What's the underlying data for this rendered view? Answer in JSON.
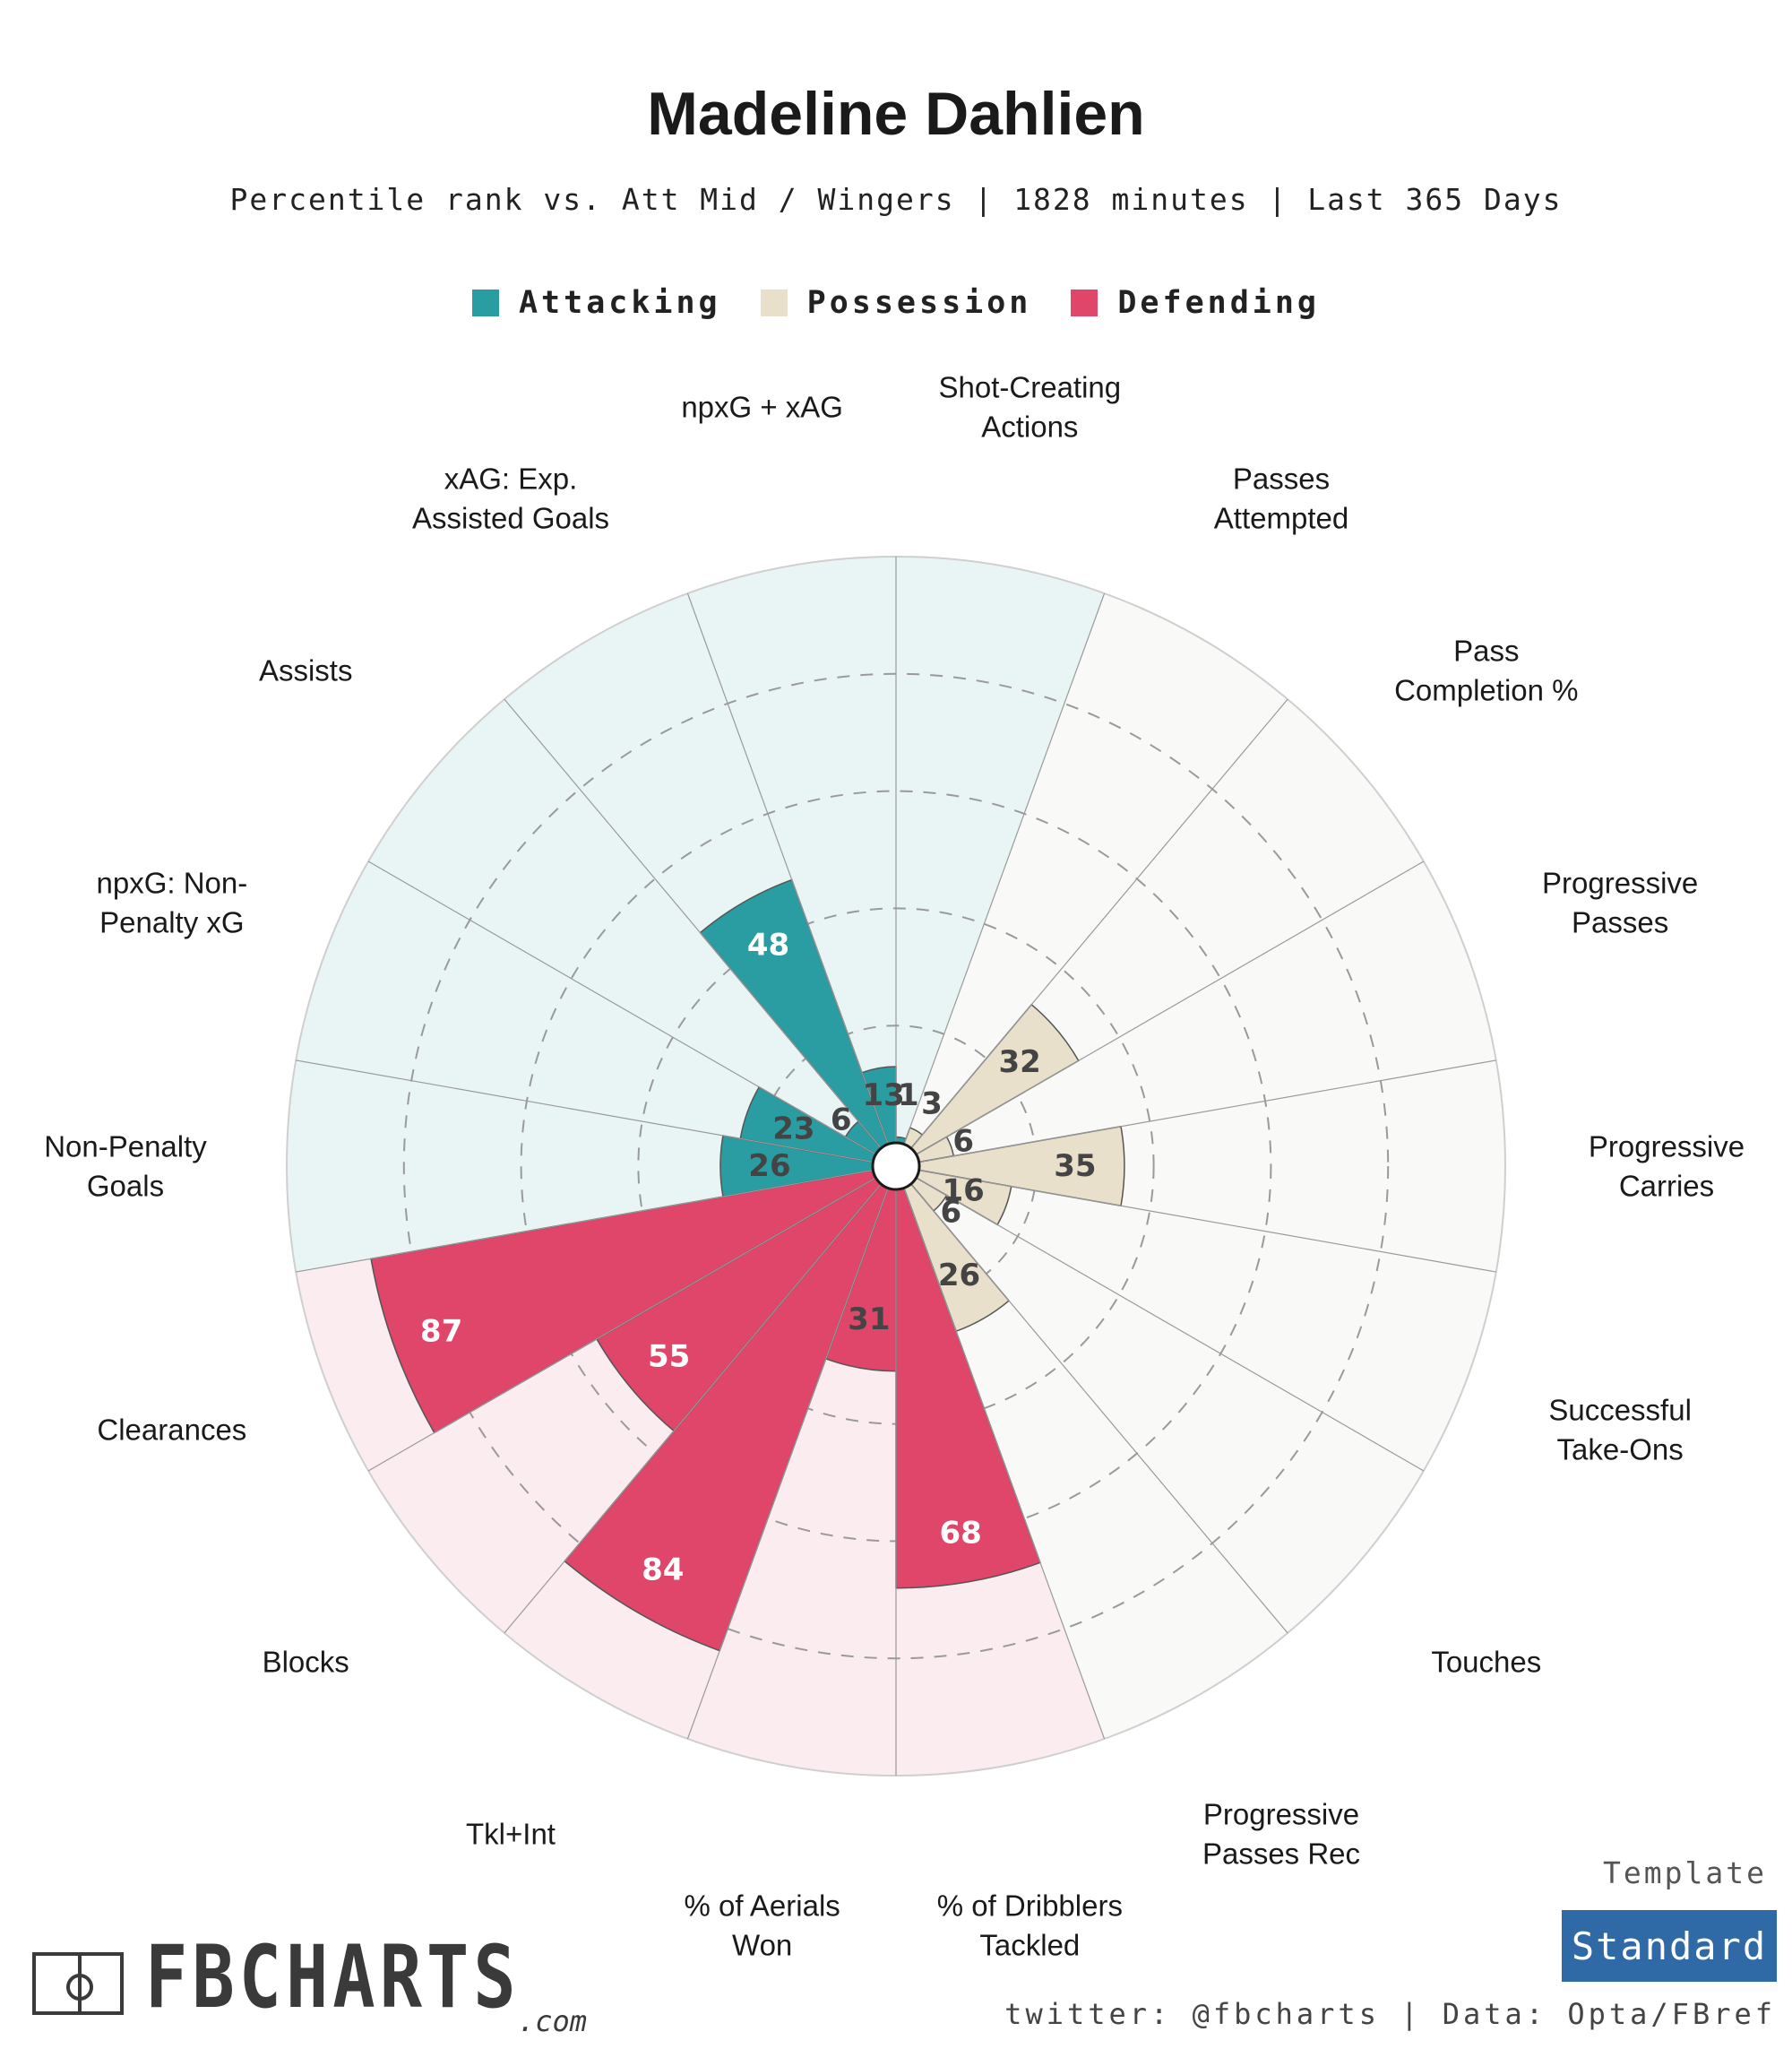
{
  "header": {
    "title": "Madeline Dahlien",
    "subtitle": "Percentile rank vs. Att Mid / Wingers | 1828 minutes | Last 365 Days"
  },
  "legend": [
    {
      "label": "Attacking",
      "color": "#2a9da3"
    },
    {
      "label": "Possession",
      "color": "#e8e0cb"
    },
    {
      "label": "Defending",
      "color": "#e0456a"
    }
  ],
  "chart_data": {
    "type": "radial-bar",
    "title": "Madeline Dahlien",
    "range": [
      0,
      100
    ],
    "rings": [
      20,
      40,
      60,
      80
    ],
    "start_direction": "top",
    "direction": "clockwise",
    "categories": [
      {
        "label": "Shot-Creating\nActions",
        "value": 1,
        "group": "Attacking"
      },
      {
        "label": "Passes\nAttempted",
        "value": 3,
        "group": "Possession"
      },
      {
        "label": "Pass\nCompletion %",
        "value": 32,
        "group": "Possession"
      },
      {
        "label": "Progressive\nPasses",
        "value": 6,
        "group": "Possession"
      },
      {
        "label": "Progressive\nCarries",
        "value": 35,
        "group": "Possession"
      },
      {
        "label": "Successful\nTake-Ons",
        "value": 16,
        "group": "Possession"
      },
      {
        "label": "Touches",
        "value": 6,
        "group": "Possession"
      },
      {
        "label": "Progressive\nPasses Rec",
        "value": 26,
        "group": "Possession"
      },
      {
        "label": "% of Dribblers\nTackled",
        "value": 68,
        "group": "Defending"
      },
      {
        "label": "% of Aerials\nWon",
        "value": 31,
        "group": "Defending"
      },
      {
        "label": "Tkl+Int",
        "value": 84,
        "group": "Defending"
      },
      {
        "label": "Blocks",
        "value": 55,
        "group": "Defending"
      },
      {
        "label": "Clearances",
        "value": 87,
        "group": "Defending"
      },
      {
        "label": "Non-Penalty\nGoals",
        "value": 26,
        "group": "Attacking"
      },
      {
        "label": "npxG: Non-\nPenalty xG",
        "value": 23,
        "group": "Attacking"
      },
      {
        "label": "Assists",
        "value": 6,
        "group": "Attacking"
      },
      {
        "label": "xAG: Exp.\nAssisted Goals",
        "value": 48,
        "group": "Attacking"
      },
      {
        "label": "npxG + xAG",
        "value": 13,
        "group": "Attacking"
      }
    ],
    "group_colors": {
      "Attacking": {
        "bar": "#2a9da3",
        "bg": "#e9f5f5"
      },
      "Possession": {
        "bar": "#e8e0cb",
        "bg": "#f9f9f8"
      },
      "Defending": {
        "bar": "#e0456a",
        "bg": "#fbecf0"
      }
    }
  },
  "footer": {
    "logo_text": "FBCHARTS",
    "logo_suffix": ".com",
    "template_label": "Template",
    "template_value": "Standard",
    "credits": "twitter: @fbcharts | Data: Opta/FBref"
  }
}
